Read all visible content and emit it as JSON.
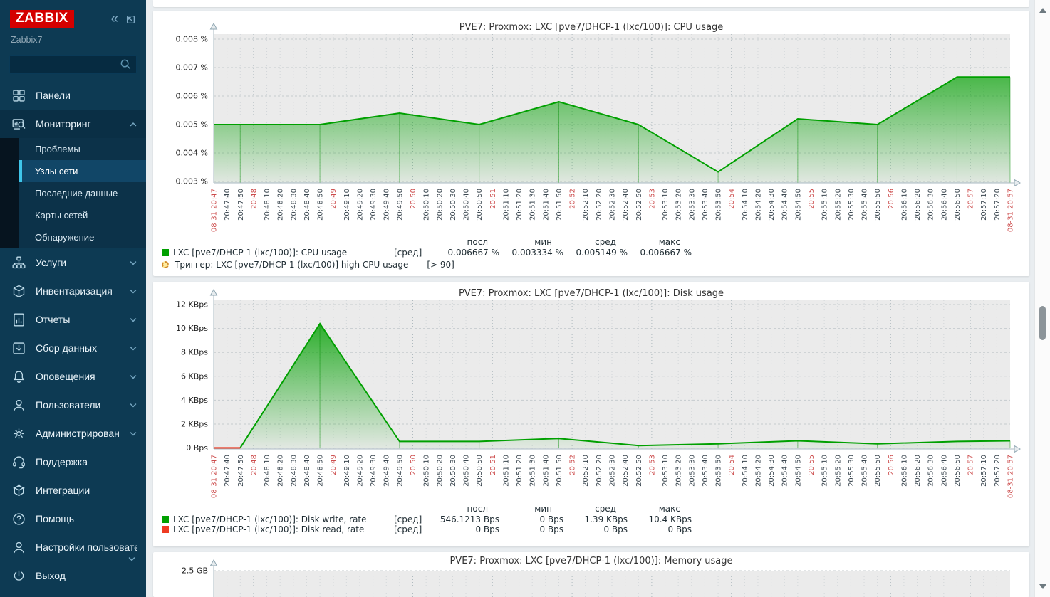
{
  "app": {
    "logo_text": "ZABBIX",
    "server_name": "Zabbix7"
  },
  "sidebar": {
    "search": {
      "placeholder": "",
      "value": ""
    },
    "primary_menu": [
      {
        "label": "Панели",
        "icon": "dashboard-icon"
      },
      {
        "label": "Мониторинг",
        "icon": "monitoring-icon",
        "expanded": true,
        "submenu": [
          {
            "label": "Проблемы",
            "selected": false
          },
          {
            "label": "Узлы сети",
            "selected": true
          },
          {
            "label": "Последние данные",
            "selected": false
          },
          {
            "label": "Карты сетей",
            "selected": false
          },
          {
            "label": "Обнаружение",
            "selected": false
          }
        ]
      },
      {
        "label": "Услуги",
        "icon": "services-icon",
        "collapsible": true
      },
      {
        "label": "Инвентаризация",
        "icon": "inventory-icon",
        "collapsible": true
      },
      {
        "label": "Отчеты",
        "icon": "reports-icon",
        "collapsible": true
      },
      {
        "label": "Сбор данных",
        "icon": "data-collection-icon",
        "collapsible": true
      },
      {
        "label": "Оповещения",
        "icon": "alerts-icon",
        "collapsible": true
      },
      {
        "label": "Пользователи",
        "icon": "users-icon",
        "collapsible": true
      },
      {
        "label": "Администрирование",
        "icon": "administration-icon",
        "collapsible": true
      }
    ],
    "secondary_menu": [
      {
        "label": "Поддержка",
        "icon": "support-icon"
      },
      {
        "label": "Интеграции",
        "icon": "integrations-icon"
      },
      {
        "label": "Помощь",
        "icon": "help-icon"
      },
      {
        "label": "Настройки пользователя",
        "icon": "user-settings-icon",
        "collapsible": true
      },
      {
        "label": "Выход",
        "icon": "signout-icon"
      }
    ]
  },
  "colors": {
    "sidebar_bg": "#0D3A53",
    "logo_red": "#D40000",
    "selected_accent": "#3FC6EA",
    "plot_bg": "#EBEBEB",
    "series_green": "#00A000",
    "series_red": "#EE3B22",
    "axis_red_label": "#CC4B4B",
    "trigger_fill": "#FFEC9E",
    "trigger_border": "#D18A28"
  },
  "chart_data": [
    {
      "type": "area",
      "title": "PVE7: Proxmox: LXC [pve7/DHCP-1 (lxc/100)]: CPU usage",
      "ylabel": "%",
      "yticks": [
        "0.008 %",
        "0.007 %",
        "0.006 %",
        "0.005 %",
        "0.004 %",
        "0.003 %"
      ],
      "ymax": 0.008,
      "ystep_value": 0.001,
      "ylim": [
        0.003,
        0.008
      ],
      "x_start": "20:47:30",
      "x_end": "20:57:30",
      "x_tick_step_s": 10,
      "xticks": [
        "08-31 20:47",
        "20:47:40",
        "20:47:50",
        "20:48",
        "20:48:10",
        "20:48:20",
        "20:48:30",
        "20:48:40",
        "20:48:50",
        "20:49",
        "20:49:10",
        "20:49:20",
        "20:49:30",
        "20:49:40",
        "20:49:50",
        "20:50",
        "20:50:10",
        "20:50:20",
        "20:50:30",
        "20:50:40",
        "20:50:50",
        "20:51",
        "20:51:10",
        "20:51:20",
        "20:51:30",
        "20:51:40",
        "20:51:50",
        "20:52",
        "20:52:10",
        "20:52:20",
        "20:52:30",
        "20:52:40",
        "20:52:50",
        "20:53",
        "20:53:10",
        "20:53:20",
        "20:53:30",
        "20:53:40",
        "20:53:50",
        "20:54",
        "20:54:10",
        "20:54:20",
        "20:54:30",
        "20:54:40",
        "20:54:50",
        "20:55",
        "20:55:10",
        "20:55:20",
        "20:55:30",
        "20:55:40",
        "20:55:50",
        "20:56",
        "20:56:10",
        "20:56:20",
        "20:56:30",
        "20:56:40",
        "20:56:50",
        "20:57",
        "20:57:10",
        "20:57:20",
        "08-31 20:57"
      ],
      "series": [
        {
          "name": "LXC [pve7/DHCP-1 (lxc/100)]: CPU usage",
          "color": "#00A000",
          "fill": true,
          "points": [
            [
              0,
              0.005
            ],
            [
              20,
              0.005
            ],
            [
              80,
              0.005
            ],
            [
              140,
              0.0054
            ],
            [
              200,
              0.005
            ],
            [
              260,
              0.0058
            ],
            [
              320,
              0.005
            ],
            [
              380,
              0.003334
            ],
            [
              440,
              0.0052
            ],
            [
              500,
              0.005
            ],
            [
              560,
              0.006667
            ],
            [
              600,
              0.006667
            ]
          ]
        }
      ],
      "legend": {
        "headers": [
          "посл",
          "мин",
          "сред",
          "макс"
        ],
        "rows": [
          {
            "swatch": "#00A000",
            "label": "LXC [pve7/DHCP-1 (lxc/100)]: CPU usage",
            "param": "[сред]",
            "values": [
              "0.006667 %",
              "0.003334 %",
              "0.005149 %",
              "0.006667 %"
            ]
          }
        ]
      },
      "trigger": {
        "label": "Триггер: LXC [pve7/DHCP-1 (lxc/100)] high CPU usage",
        "param": "[> 90]"
      }
    },
    {
      "type": "area",
      "title": "PVE7: Proxmox: LXC [pve7/DHCP-1 (lxc/100)]: Disk usage",
      "ylabel": "Bps",
      "yticks": [
        "12 KBps",
        "10 KBps",
        "8 KBps",
        "6 KBps",
        "4 KBps",
        "2 KBps",
        "0 Bps"
      ],
      "ymax": 12,
      "ystep_value": 2,
      "ylim": [
        0,
        12
      ],
      "x_start": "20:47:30",
      "x_end": "20:57:30",
      "x_tick_step_s": 10,
      "xticks": [
        "08-31 20:47",
        "20:47:40",
        "20:47:50",
        "20:48",
        "20:48:10",
        "20:48:20",
        "20:48:30",
        "20:48:40",
        "20:48:50",
        "20:49",
        "20:49:10",
        "20:49:20",
        "20:49:30",
        "20:49:40",
        "20:49:50",
        "20:50",
        "20:50:10",
        "20:50:20",
        "20:50:30",
        "20:50:40",
        "20:50:50",
        "20:51",
        "20:51:10",
        "20:51:20",
        "20:51:30",
        "20:51:40",
        "20:51:50",
        "20:52",
        "20:52:10",
        "20:52:20",
        "20:52:30",
        "20:52:40",
        "20:52:50",
        "20:53",
        "20:53:10",
        "20:53:20",
        "20:53:30",
        "20:53:40",
        "20:53:50",
        "20:54",
        "20:54:10",
        "20:54:20",
        "20:54:30",
        "20:54:40",
        "20:54:50",
        "20:55",
        "20:55:10",
        "20:55:20",
        "20:55:30",
        "20:55:40",
        "20:55:50",
        "20:56",
        "20:56:10",
        "20:56:20",
        "20:56:30",
        "20:56:40",
        "20:56:50",
        "20:57",
        "20:57:10",
        "20:57:20",
        "08-31 20:57"
      ],
      "series": [
        {
          "name": "LXC [pve7/DHCP-1 (lxc/100)]: Disk write, rate",
          "color": "#00A000",
          "fill": true,
          "points": [
            [
              20,
              0.02
            ],
            [
              80,
              10.4
            ],
            [
              140,
              0.55
            ],
            [
              200,
              0.55
            ],
            [
              260,
              0.8
            ],
            [
              320,
              0.2
            ],
            [
              380,
              0.35
            ],
            [
              440,
              0.6
            ],
            [
              500,
              0.35
            ],
            [
              560,
              0.55
            ],
            [
              600,
              0.6
            ]
          ]
        },
        {
          "name": "LXC [pve7/DHCP-1 (lxc/100)]: Disk read, rate",
          "color": "#EE3B22",
          "fill": false,
          "points": [
            [
              0,
              0
            ],
            [
              20,
              0
            ]
          ]
        }
      ],
      "legend": {
        "headers": [
          "посл",
          "мин",
          "сред",
          "макс"
        ],
        "rows": [
          {
            "swatch": "#00A000",
            "label": "LXC [pve7/DHCP-1 (lxc/100)]: Disk write, rate",
            "param": "[сред]",
            "values": [
              "546.1213 Bps",
              "0 Bps",
              "1.39 KBps",
              "10.4 KBps"
            ]
          },
          {
            "swatch": "#EE3B22",
            "label": "LXC [pve7/DHCP-1 (lxc/100)]: Disk read, rate",
            "param": "[сред]",
            "values": [
              "0 Bps",
              "0 Bps",
              "0 Bps",
              "0 Bps"
            ]
          }
        ]
      }
    },
    {
      "type": "area",
      "title": "PVE7: Proxmox: LXC [pve7/DHCP-1 (lxc/100)]: Memory usage",
      "ylabel": "GB",
      "yticks": [
        "2.5 GB"
      ],
      "ymax": 2.5,
      "visibility": "partially visible (cut off at bottom of viewport)"
    }
  ]
}
